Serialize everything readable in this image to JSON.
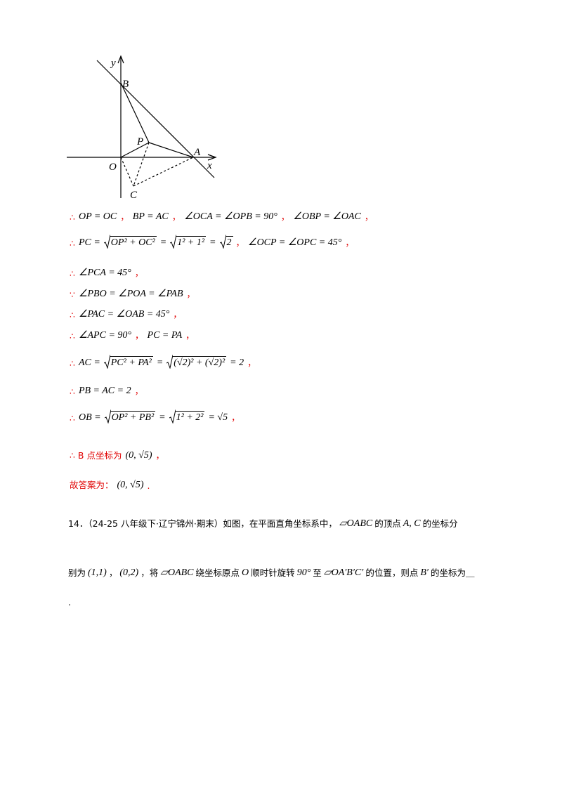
{
  "figure": {
    "labels": {
      "y": "y",
      "B": "B",
      "P": "P",
      "A": "A",
      "O": "O",
      "x": "x",
      "C": "C"
    }
  },
  "lines": [
    [
      {
        "red": "∴"
      },
      "OP = OC",
      {
        "red": "，"
      },
      "BP = AC",
      {
        "red": "，"
      },
      "∠OCA = ∠OPB = 90°",
      {
        "red": "，"
      },
      "∠OBP = ∠OAC",
      {
        "red": "，"
      }
    ],
    [
      {
        "red": "∴"
      },
      "PC =",
      {
        "sqrt": "OP² + OC²"
      },
      "=",
      {
        "sqrt": "1² + 1²"
      },
      "=",
      {
        "sqrt": "2"
      },
      {
        "red": "，"
      },
      "∠OCP = ∠OPC = 45°",
      {
        "red": "，"
      }
    ],
    [
      {
        "red": "∴"
      },
      "∠PCA = 45°",
      {
        "red": "，"
      }
    ],
    [
      {
        "red": "∵"
      },
      "∠PBO = ∠POA = ∠PAB",
      {
        "red": "，"
      }
    ],
    [
      {
        "red": "∴"
      },
      "∠PAC = ∠OAB = 45°",
      {
        "red": "，"
      }
    ],
    [
      {
        "red": "∴"
      },
      "∠APC = 90°",
      {
        "red": "，"
      },
      "PC = PA",
      {
        "red": "，"
      }
    ],
    [
      {
        "red": "∴"
      },
      "AC =",
      {
        "sqrt": "PC² + PA²"
      },
      "=",
      {
        "sqrt": "(√2)² + (√2)²"
      },
      "= 2",
      {
        "red": "，"
      }
    ],
    [
      {
        "red": "∴"
      },
      "PB = AC = 2",
      {
        "red": "，"
      }
    ],
    [
      {
        "red": "∴"
      },
      "OB =",
      {
        "sqrt": "OP² + PB²"
      },
      "=",
      {
        "sqrt": "1² + 2²"
      },
      "= √5",
      {
        "red": "，"
      }
    ],
    [
      {
        "red": "∴ B 点坐标为"
      },
      "(0, √5)",
      {
        "red": "，"
      }
    ],
    [
      {
        "red": "故答案为："
      },
      "(0, √5)",
      {
        "red": "."
      }
    ],
    [
      {
        "cn": "14．（24-25 八年级下·辽宁锦州·期末）如图，在平面直角坐标系中，"
      },
      "▱OABC",
      {
        "cn": "的顶点"
      },
      "A, C",
      {
        "cn": "的坐标分"
      }
    ],
    [
      {
        "cn": "别为"
      },
      "(1,1)",
      {
        "cn": "，"
      },
      "(0,2)",
      {
        "cn": "，将"
      },
      "▱OABC",
      {
        "cn": "绕坐标原点"
      },
      "O",
      {
        "cn": "顺时针旋转"
      },
      "90°",
      {
        "cn": "至"
      },
      "▱OA′B′C′",
      {
        "cn": "的位置，则点"
      },
      "B′",
      {
        "cn": "的坐标为＿"
      }
    ],
    [
      {
        "cn": "."
      }
    ]
  ]
}
